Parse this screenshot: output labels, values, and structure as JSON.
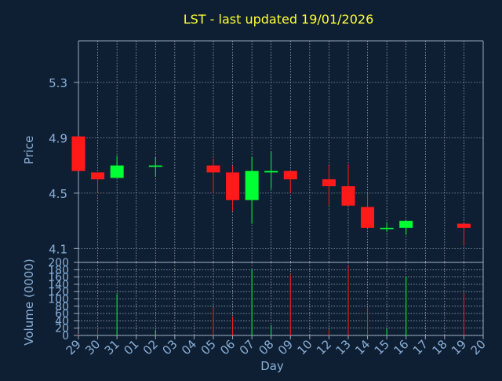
{
  "title": "LST - last updated 19/01/2026",
  "colors": {
    "background": "#0f1f33",
    "title": "#ffff33",
    "axis_text": "#8aaed6",
    "frame": "#9aa9ba",
    "grid": "#c9d2dc",
    "up": "#00ff33",
    "down": "#ff1a1a"
  },
  "chart_data": [
    {
      "type": "candlestick",
      "ylabel": "Price",
      "ylim": [
        4.0,
        5.6
      ],
      "yticks": [
        4.1,
        4.5,
        4.9,
        5.3
      ],
      "grid": true,
      "categories": [
        "29",
        "30",
        "31",
        "01",
        "02",
        "03",
        "04",
        "05",
        "06",
        "07",
        "08",
        "09",
        "10",
        "12",
        "13",
        "14",
        "15",
        "16",
        "17",
        "18",
        "19",
        "20"
      ],
      "candles": [
        {
          "x": "29",
          "open": 4.91,
          "close": 4.66,
          "high": 4.91,
          "low": 4.66
        },
        {
          "x": "30",
          "open": 4.65,
          "close": 4.6,
          "high": 4.65,
          "low": 4.5
        },
        {
          "x": "31",
          "open": 4.61,
          "close": 4.7,
          "high": 4.77,
          "low": 4.61
        },
        {
          "x": "02",
          "open": 4.69,
          "close": 4.7,
          "high": 4.76,
          "low": 4.62
        },
        {
          "x": "05",
          "open": 4.7,
          "close": 4.65,
          "high": 4.75,
          "low": 4.5
        },
        {
          "x": "06",
          "open": 4.65,
          "close": 4.45,
          "high": 4.7,
          "low": 4.37
        },
        {
          "x": "07",
          "open": 4.45,
          "close": 4.66,
          "high": 4.76,
          "low": 4.28
        },
        {
          "x": "08",
          "open": 4.65,
          "close": 4.66,
          "high": 4.8,
          "low": 4.53
        },
        {
          "x": "09",
          "open": 4.66,
          "close": 4.6,
          "high": 4.66,
          "low": 4.5
        },
        {
          "x": "12",
          "open": 4.6,
          "close": 4.55,
          "high": 4.7,
          "low": 4.41
        },
        {
          "x": "13",
          "open": 4.55,
          "close": 4.41,
          "high": 4.71,
          "low": 4.41
        },
        {
          "x": "14",
          "open": 4.4,
          "close": 4.25,
          "high": 4.5,
          "low": 4.25
        },
        {
          "x": "15",
          "open": 4.24,
          "close": 4.25,
          "high": 4.29,
          "low": 4.22
        },
        {
          "x": "16",
          "open": 4.25,
          "close": 4.3,
          "high": 4.3,
          "low": 4.2
        },
        {
          "x": "19",
          "open": 4.28,
          "close": 4.25,
          "high": 4.28,
          "low": 4.12
        }
      ]
    },
    {
      "type": "bar",
      "ylabel": "Volume (0000)",
      "xlabel": "Day",
      "ylim": [
        0,
        200
      ],
      "yticks": [
        0,
        20,
        40,
        60,
        80,
        100,
        120,
        140,
        160,
        180,
        200
      ],
      "grid": true,
      "categories": [
        "29",
        "30",
        "31",
        "01",
        "02",
        "03",
        "04",
        "05",
        "06",
        "07",
        "08",
        "09",
        "10",
        "12",
        "13",
        "14",
        "15",
        "16",
        "17",
        "18",
        "19",
        "20"
      ],
      "bars": [
        {
          "x": "29",
          "value": 4,
          "direction": "down"
        },
        {
          "x": "30",
          "value": 20,
          "direction": "down"
        },
        {
          "x": "31",
          "value": 113,
          "direction": "up"
        },
        {
          "x": "02",
          "value": 15,
          "direction": "up"
        },
        {
          "x": "05",
          "value": 78,
          "direction": "down"
        },
        {
          "x": "06",
          "value": 52,
          "direction": "down"
        },
        {
          "x": "07",
          "value": 180,
          "direction": "up"
        },
        {
          "x": "08",
          "value": 28,
          "direction": "up"
        },
        {
          "x": "09",
          "value": 165,
          "direction": "down"
        },
        {
          "x": "12",
          "value": 15,
          "direction": "down"
        },
        {
          "x": "13",
          "value": 190,
          "direction": "down"
        },
        {
          "x": "14",
          "value": 75,
          "direction": "down"
        },
        {
          "x": "15",
          "value": 18,
          "direction": "up"
        },
        {
          "x": "16",
          "value": 162,
          "direction": "up"
        },
        {
          "x": "19",
          "value": 115,
          "direction": "down"
        }
      ]
    }
  ]
}
